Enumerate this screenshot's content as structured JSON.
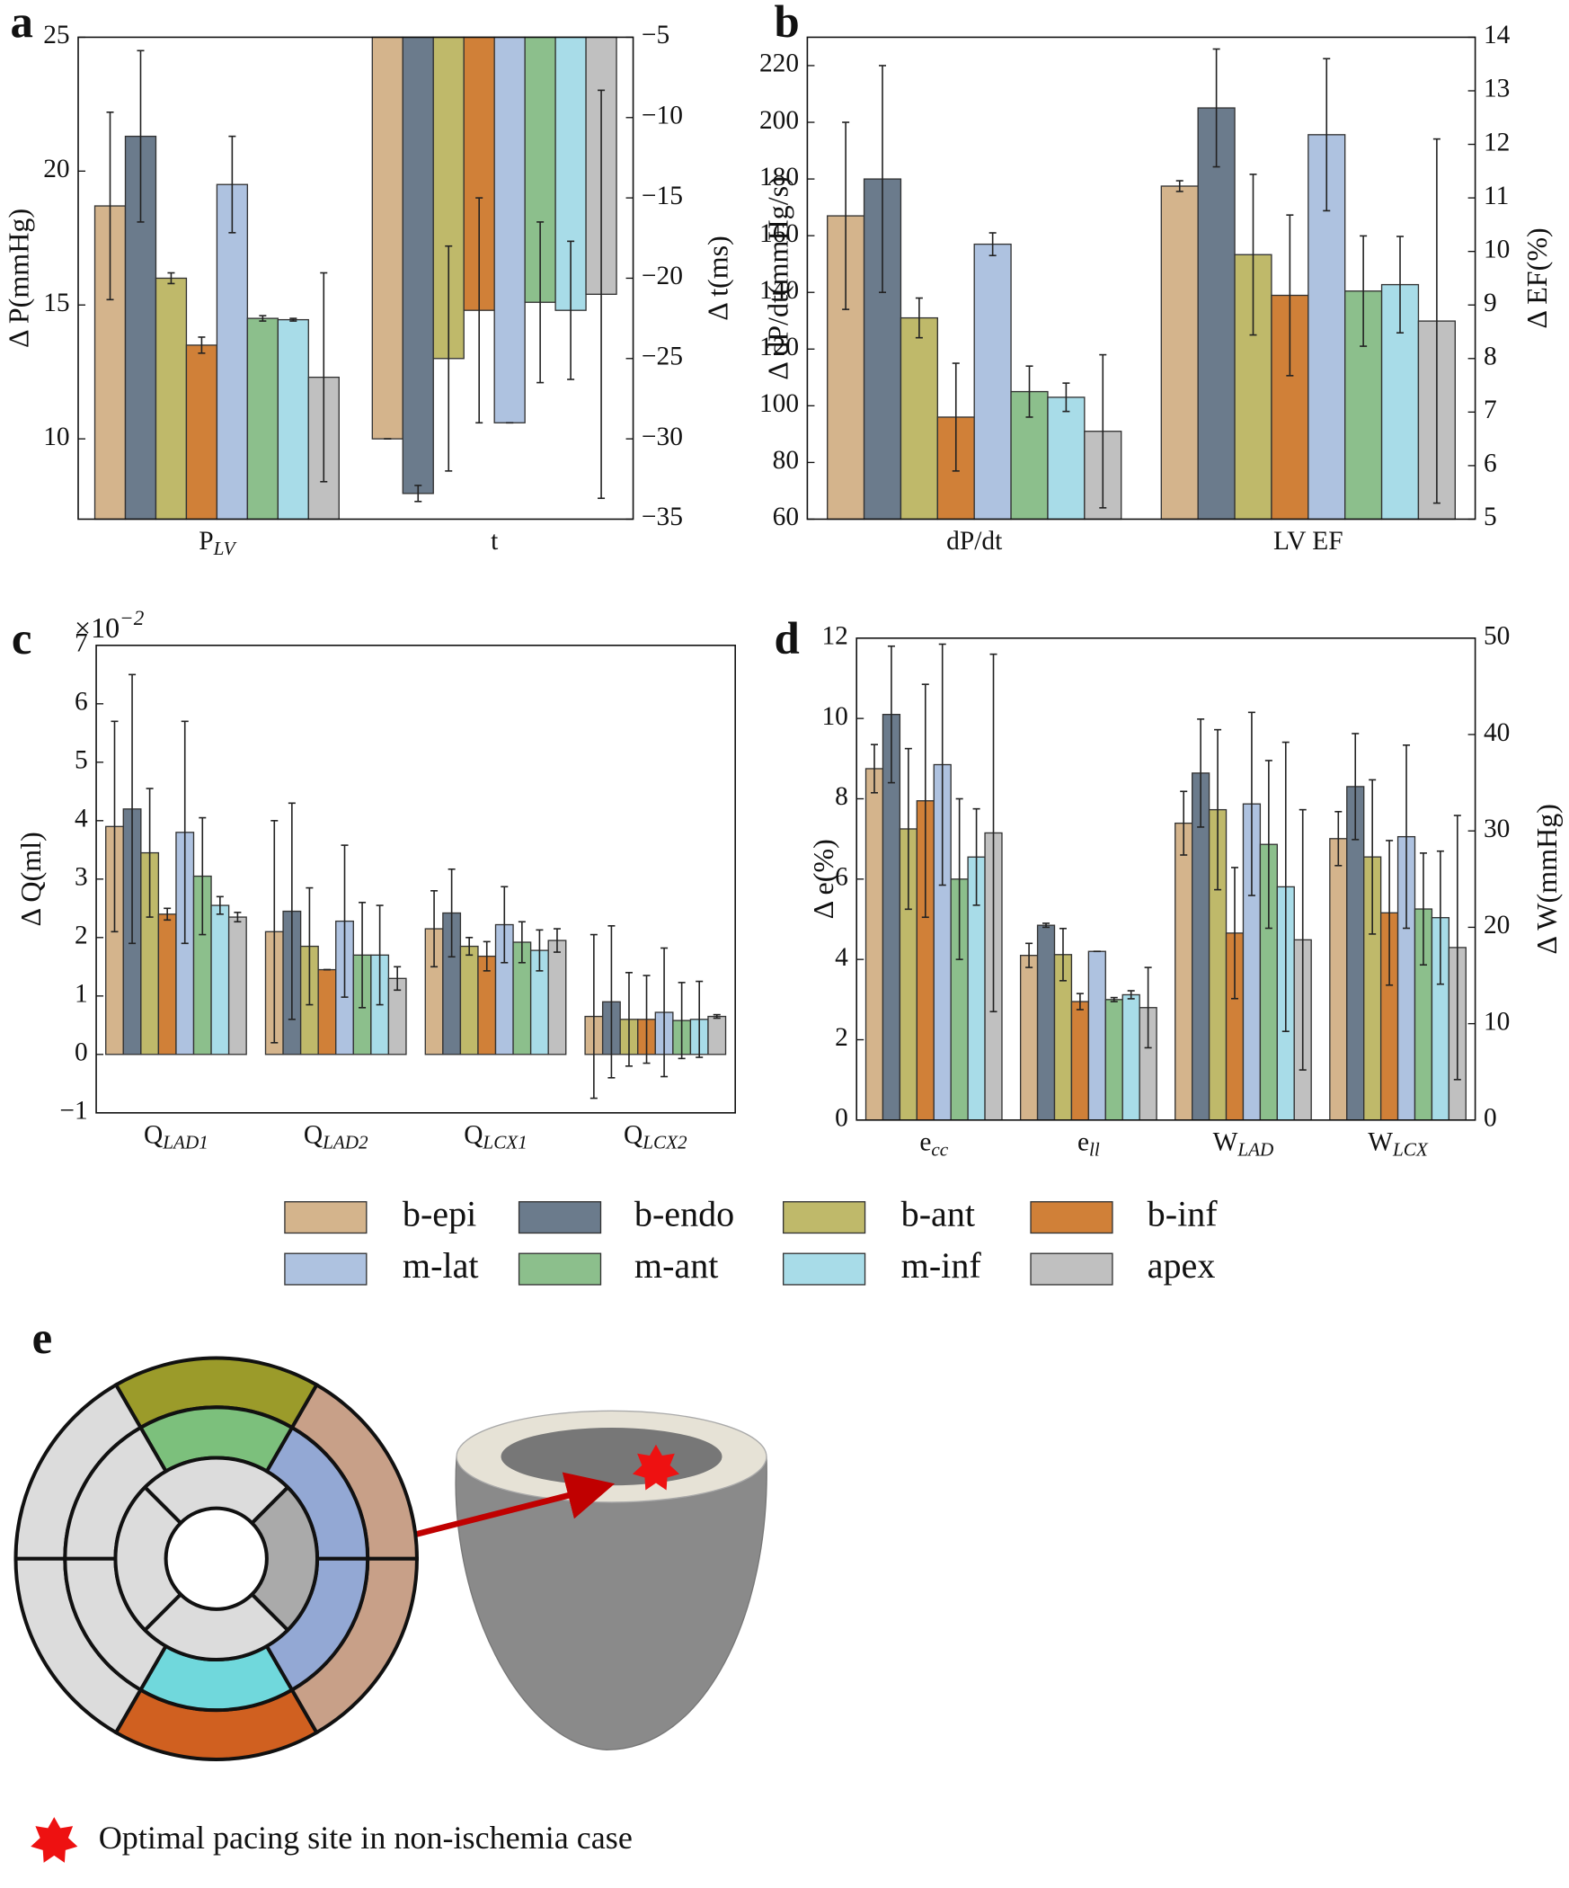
{
  "chart_data": [
    {
      "type": "bar",
      "label": "a",
      "categories": [
        "P_LV",
        "t"
      ],
      "category_axes": [
        "y",
        "y2"
      ],
      "ylabel": "Δ P(mmHg)",
      "y2label": "Δ t(ms)",
      "ylim": [
        7,
        25
      ],
      "yticks": [
        10,
        15,
        20,
        25
      ],
      "y2lim": [
        -35,
        -5
      ],
      "y2ticks": [
        {
          "value": -35,
          "label": "−35"
        },
        {
          "value": -30,
          "label": "−30"
        },
        {
          "value": -25,
          "label": "−25"
        },
        {
          "value": -20,
          "label": "−20"
        },
        {
          "value": -15,
          "label": "−15"
        },
        {
          "value": -10,
          "label": "−10"
        },
        {
          "value": -5,
          "label": "−5"
        }
      ],
      "series": [
        {
          "name": "b-epi",
          "color": "#d4b48c",
          "values": [
            18.7,
            -30
          ],
          "errors": [
            3.5,
            0
          ]
        },
        {
          "name": "b-endo",
          "color": "#6b7b8c",
          "values": [
            21.3,
            -33.4
          ],
          "errors": [
            3.2,
            0.5
          ]
        },
        {
          "name": "b-ant",
          "color": "#bfb96a",
          "values": [
            16.0,
            -25
          ],
          "errors": [
            0.2,
            7
          ]
        },
        {
          "name": "b-inf",
          "color": "#d08038",
          "values": [
            13.5,
            -22
          ],
          "errors": [
            0.3,
            7
          ]
        },
        {
          "name": "m-lat",
          "color": "#aec2e0",
          "values": [
            19.5,
            -29
          ],
          "errors": [
            1.8,
            0
          ]
        },
        {
          "name": "m-ant",
          "color": "#8cbf8c",
          "values": [
            14.5,
            -21.5
          ],
          "errors": [
            0.1,
            5
          ]
        },
        {
          "name": "m-inf",
          "color": "#a8dce8",
          "values": [
            14.45,
            -22
          ],
          "errors": [
            0.05,
            4.3
          ]
        },
        {
          "name": "apex",
          "color": "#c0c0c0",
          "values": [
            12.3,
            -21
          ],
          "errors": [
            3.9,
            12.7
          ]
        }
      ]
    },
    {
      "type": "bar",
      "label": "b",
      "categories": [
        "dP/dt",
        "LV EF"
      ],
      "category_axes": [
        "y",
        "y2"
      ],
      "ylabel": "Δ dP/dt(mmHg/s)",
      "y2label": "Δ EF(%)",
      "ylim": [
        60,
        230
      ],
      "yticks": [
        60,
        80,
        100,
        120,
        140,
        160,
        180,
        200,
        220
      ],
      "y2lim": [
        5,
        14
      ],
      "y2ticks": [
        5,
        6,
        7,
        8,
        9,
        10,
        11,
        12,
        13,
        14
      ],
      "series": [
        {
          "name": "b-epi",
          "color": "#d4b48c",
          "values": [
            167,
            11.22
          ],
          "errors": [
            33,
            0.1
          ]
        },
        {
          "name": "b-endo",
          "color": "#6b7b8c",
          "values": [
            180,
            12.68
          ],
          "errors": [
            40,
            1.1
          ]
        },
        {
          "name": "b-ant",
          "color": "#bfb96a",
          "values": [
            131,
            9.94
          ],
          "errors": [
            7,
            1.5
          ]
        },
        {
          "name": "b-inf",
          "color": "#d08038",
          "values": [
            96,
            9.18
          ],
          "errors": [
            19,
            1.5
          ]
        },
        {
          "name": "m-lat",
          "color": "#aec2e0",
          "values": [
            157,
            12.18
          ],
          "errors": [
            4,
            1.42
          ]
        },
        {
          "name": "m-ant",
          "color": "#8cbf8c",
          "values": [
            105,
            9.26
          ],
          "errors": [
            9,
            1.03
          ]
        },
        {
          "name": "m-inf",
          "color": "#a8dce8",
          "values": [
            103,
            9.38
          ],
          "errors": [
            5,
            0.9
          ]
        },
        {
          "name": "apex",
          "color": "#c0c0c0",
          "values": [
            91,
            8.7
          ],
          "errors": [
            27,
            3.4
          ]
        }
      ]
    },
    {
      "type": "bar",
      "label": "c",
      "categories": [
        "Q_LAD1",
        "Q_LAD2",
        "Q_LCX1",
        "Q_LCX2"
      ],
      "ylabel": "Δ Q(ml)",
      "y_offset_label": "×10^−2",
      "ylim": [
        -1,
        7
      ],
      "yticks": [
        {
          "value": -1,
          "label": "−1"
        },
        0,
        1,
        2,
        3,
        4,
        5,
        6,
        7
      ],
      "series": [
        {
          "name": "b-epi",
          "color": "#d4b48c",
          "values": [
            3.9,
            2.1,
            2.15,
            0.65
          ],
          "errors": [
            1.8,
            1.9,
            0.65,
            1.4
          ]
        },
        {
          "name": "b-endo",
          "color": "#6b7b8c",
          "values": [
            4.2,
            2.45,
            2.42,
            0.9
          ],
          "errors": [
            2.3,
            1.85,
            0.75,
            1.3
          ]
        },
        {
          "name": "b-ant",
          "color": "#bfb96a",
          "values": [
            3.45,
            1.85,
            1.85,
            0.6
          ],
          "errors": [
            1.1,
            1.0,
            0.15,
            0.8
          ]
        },
        {
          "name": "b-inf",
          "color": "#d08038",
          "values": [
            2.4,
            1.45,
            1.68,
            0.6
          ],
          "errors": [
            0.1,
            0,
            0.25,
            0.75
          ]
        },
        {
          "name": "m-lat",
          "color": "#aec2e0",
          "values": [
            3.8,
            2.28,
            2.22,
            0.72
          ],
          "errors": [
            1.9,
            1.3,
            0.65,
            1.1
          ]
        },
        {
          "name": "m-ant",
          "color": "#8cbf8c",
          "values": [
            3.05,
            1.7,
            1.92,
            0.58
          ],
          "errors": [
            1.0,
            0.9,
            0.35,
            0.65
          ]
        },
        {
          "name": "m-inf",
          "color": "#a8dce8",
          "values": [
            2.55,
            1.7,
            1.78,
            0.6
          ],
          "errors": [
            0.15,
            0.85,
            0.35,
            0.65
          ]
        },
        {
          "name": "apex",
          "color": "#c0c0c0",
          "values": [
            2.35,
            1.3,
            1.95,
            0.65
          ],
          "errors": [
            0.08,
            0.2,
            0.2,
            0.03
          ]
        }
      ]
    },
    {
      "type": "bar",
      "label": "d",
      "categories": [
        "e_cc",
        "e_ll",
        "W_LAD",
        "W_LCX"
      ],
      "category_axes": [
        "y",
        "y",
        "y2",
        "y2"
      ],
      "ylabel": "Δ e(%)",
      "y2label": "Δ W(mmHg)",
      "ylim": [
        0,
        12
      ],
      "yticks": [
        0,
        2,
        4,
        6,
        8,
        10,
        12
      ],
      "y2lim": [
        0,
        50
      ],
      "y2ticks": [
        0,
        10,
        20,
        30,
        40,
        50
      ],
      "series": [
        {
          "name": "b-epi",
          "color": "#d4b48c",
          "values": [
            8.75,
            4.1,
            30.8,
            29.2
          ],
          "errors": [
            0.6,
            0.3,
            3.3,
            2.8
          ]
        },
        {
          "name": "b-endo",
          "color": "#6b7b8c",
          "values": [
            10.1,
            4.85,
            36.0,
            34.6
          ],
          "errors": [
            1.7,
            0.05,
            5.6,
            5.5
          ]
        },
        {
          "name": "b-ant",
          "color": "#bfb96a",
          "values": [
            7.25,
            4.12,
            32.2,
            27.3
          ],
          "errors": [
            2.0,
            0.65,
            8.3,
            8
          ]
        },
        {
          "name": "b-inf",
          "color": "#d08038",
          "values": [
            7.95,
            2.95,
            19.4,
            21.5
          ],
          "errors": [
            2.9,
            0.2,
            6.8,
            7.5
          ]
        },
        {
          "name": "m-lat",
          "color": "#aec2e0",
          "values": [
            8.85,
            4.2,
            32.8,
            29.4
          ],
          "errors": [
            3.0,
            0,
            9.5,
            9.5
          ]
        },
        {
          "name": "m-ant",
          "color": "#8cbf8c",
          "values": [
            6.0,
            3.0,
            28.6,
            21.9
          ],
          "errors": [
            2.0,
            0.05,
            8.7,
            5.8
          ]
        },
        {
          "name": "m-inf",
          "color": "#a8dce8",
          "values": [
            6.55,
            3.12,
            24.2,
            21.0
          ],
          "errors": [
            1.2,
            0.1,
            15,
            6.9
          ]
        },
        {
          "name": "apex",
          "color": "#c0c0c0",
          "values": [
            7.15,
            2.8,
            18.7,
            17.9
          ],
          "errors": [
            4.45,
            1.0,
            13.5,
            13.7
          ]
        }
      ]
    }
  ],
  "panel_e": {
    "label": "e",
    "caption": "Optimal pacing site in non-ischemia case"
  }
}
